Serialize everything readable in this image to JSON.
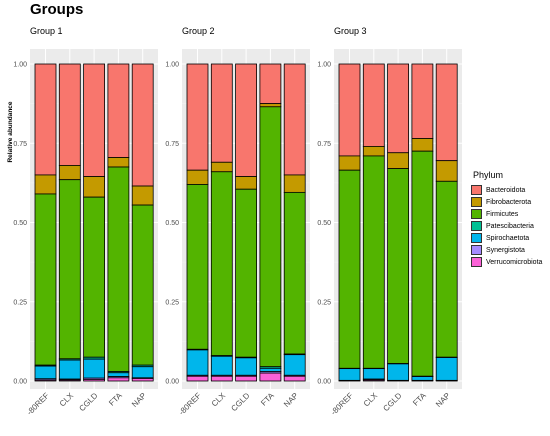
{
  "title": "Groups",
  "ylabel": "Relative abundance",
  "legend": {
    "title": "Phylum",
    "items": [
      {
        "label": "Bacteroidota",
        "color": "#F8766D"
      },
      {
        "label": "Fibrobacterota",
        "color": "#C49A00"
      },
      {
        "label": "Firmicutes",
        "color": "#53B400"
      },
      {
        "label": "Patescibacteria",
        "color": "#00C094"
      },
      {
        "label": "Spirochaetota",
        "color": "#00B6EB"
      },
      {
        "label": "Synergistota",
        "color": "#A58AFF"
      },
      {
        "label": "Verrucomicrobiota",
        "color": "#FB61D7"
      }
    ]
  },
  "chart_data": {
    "type": "bar",
    "stacked": true,
    "y_ticks": [
      "0.00",
      "0.25",
      "0.50",
      "0.75",
      "1.00"
    ],
    "ylim": [
      0,
      1
    ],
    "categories": [
      "-80REF",
      "CLX",
      "CGLD",
      "FTA",
      "NAP"
    ],
    "panels": [
      {
        "label": "Group 1",
        "bars": [
          [
            0.35,
            0.06,
            0.54,
            0.003,
            0.04,
            0.004,
            0.003
          ],
          [
            0.32,
            0.045,
            0.565,
            0.004,
            0.06,
            0.003,
            0.003
          ],
          [
            0.355,
            0.065,
            0.505,
            0.006,
            0.06,
            0.004,
            0.005
          ],
          [
            0.295,
            0.03,
            0.645,
            0.004,
            0.012,
            0.004,
            0.01
          ],
          [
            0.385,
            0.06,
            0.505,
            0.005,
            0.035,
            0.002,
            0.008
          ]
        ]
      },
      {
        "label": "Group 2",
        "bars": [
          [
            0.335,
            0.045,
            0.52,
            0.002,
            0.08,
            0.003,
            0.015
          ],
          [
            0.31,
            0.03,
            0.58,
            0.002,
            0.06,
            0.003,
            0.015
          ],
          [
            0.355,
            0.04,
            0.53,
            0.002,
            0.055,
            0.003,
            0.015
          ],
          [
            0.125,
            0.01,
            0.82,
            0.005,
            0.01,
            0.005,
            0.025
          ],
          [
            0.35,
            0.055,
            0.51,
            0.002,
            0.065,
            0.003,
            0.015
          ]
        ]
      },
      {
        "label": "Group 3",
        "bars": [
          [
            0.29,
            0.045,
            0.625,
            0.001,
            0.037,
            0.001,
            0.001
          ],
          [
            0.26,
            0.03,
            0.67,
            0.001,
            0.033,
            0.003,
            0.003
          ],
          [
            0.28,
            0.05,
            0.615,
            0.001,
            0.052,
            0.001,
            0.001
          ],
          [
            0.235,
            0.04,
            0.71,
            0.001,
            0.012,
            0.001,
            0.001
          ],
          [
            0.305,
            0.065,
            0.555,
            0.001,
            0.072,
            0.001,
            0.001
          ]
        ]
      }
    ]
  }
}
